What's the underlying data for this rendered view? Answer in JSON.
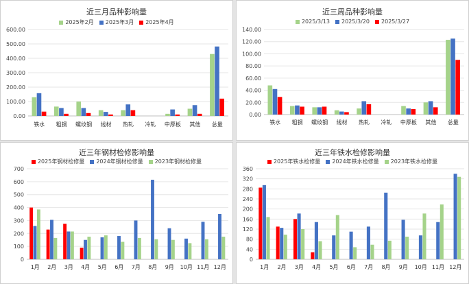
{
  "chart_data": [
    {
      "type": "bar",
      "title": "近三月品种影响量",
      "categories": [
        "铁水",
        "粗钢",
        "螺纹钢",
        "线材",
        "热轧",
        "冷轧",
        "中厚板",
        "其他",
        "总量"
      ],
      "series": [
        {
          "name": "2025年2月",
          "color": "#a5d38a",
          "values": [
            130,
            65,
            100,
            40,
            40,
            0,
            15,
            50,
            430
          ]
        },
        {
          "name": "2025年3月",
          "color": "#4472c4",
          "values": [
            158,
            55,
            55,
            28,
            80,
            0,
            45,
            75,
            482
          ]
        },
        {
          "name": "2025年4月",
          "color": "#ff0000",
          "values": [
            30,
            15,
            20,
            10,
            40,
            0,
            10,
            15,
            120
          ]
        }
      ],
      "yticks": [
        "0.00",
        "100.00",
        "200.00",
        "300.00",
        "400.00",
        "500.00",
        "600.00"
      ],
      "ylim": [
        0,
        600
      ],
      "legend": "top"
    },
    {
      "type": "bar",
      "title": "近三周品种影响量",
      "categories": [
        "铁水",
        "粗钢",
        "螺纹钢",
        "线材",
        "热轧",
        "冷轧",
        "中厚板",
        "其他",
        "总量"
      ],
      "series": [
        {
          "name": "2025/3/13",
          "color": "#a5d38a",
          "values": [
            48,
            14,
            12,
            7,
            10,
            0,
            14,
            20,
            123
          ]
        },
        {
          "name": "2025/3/20",
          "color": "#4472c4",
          "values": [
            42,
            15,
            12,
            5,
            22,
            0,
            10,
            22,
            125
          ]
        },
        {
          "name": "2025/3/27",
          "color": "#ff0000",
          "values": [
            29,
            13,
            13,
            4,
            17,
            0,
            9,
            12,
            90
          ]
        }
      ],
      "yticks": [
        "0.00",
        "20.00",
        "40.00",
        "60.00",
        "80.00",
        "100.00",
        "120.00",
        "140.00"
      ],
      "ylim": [
        0,
        140
      ],
      "legend": "top"
    },
    {
      "type": "bar",
      "title": "近三年钢材检修影响量",
      "categories": [
        "1月",
        "2月",
        "3月",
        "4月",
        "5月",
        "6月",
        "7月",
        "8月",
        "9月",
        "10月",
        "11月",
        "12月"
      ],
      "series": [
        {
          "name": "2025年钢材检修量",
          "color": "#ff0000",
          "values": [
            400,
            230,
            275,
            90,
            null,
            null,
            null,
            null,
            null,
            null,
            null,
            null
          ]
        },
        {
          "name": "2024年钢材检修量",
          "color": "#4472c4",
          "values": [
            258,
            305,
            215,
            150,
            170,
            180,
            300,
            615,
            240,
            160,
            290,
            350
          ]
        },
        {
          "name": "2023年钢材检修量",
          "color": "#a5d38a",
          "values": [
            385,
            165,
            215,
            175,
            185,
            135,
            165,
            155,
            150,
            125,
            155,
            175
          ]
        }
      ],
      "yticks": [
        "0",
        "100",
        "200",
        "300",
        "400",
        "500",
        "600",
        "700"
      ],
      "ylim": [
        0,
        700
      ],
      "legend": "top"
    },
    {
      "type": "bar",
      "title": "近三年铁水检修影响量",
      "categories": [
        "1月",
        "2月",
        "3月",
        "4月",
        "5月",
        "6月",
        "7月",
        "8月",
        "9月",
        "10月",
        "11月",
        "12月"
      ],
      "series": [
        {
          "name": "2025年铁水检修量",
          "color": "#ff0000",
          "values": [
            285,
            130,
            160,
            28,
            null,
            null,
            null,
            null,
            null,
            null,
            null,
            null
          ]
        },
        {
          "name": "2024年铁水检修量",
          "color": "#4472c4",
          "values": [
            295,
            125,
            182,
            148,
            95,
            110,
            130,
            265,
            157,
            95,
            148,
            340
          ]
        },
        {
          "name": "2023年铁水检修量",
          "color": "#a5d38a",
          "values": [
            168,
            98,
            120,
            72,
            176,
            48,
            58,
            74,
            90,
            182,
            218,
            328
          ]
        }
      ],
      "yticks": [
        "0",
        "40",
        "80",
        "120",
        "160",
        "200",
        "240",
        "280",
        "320",
        "360"
      ],
      "ylim": [
        0,
        360
      ],
      "legend": "top"
    }
  ]
}
